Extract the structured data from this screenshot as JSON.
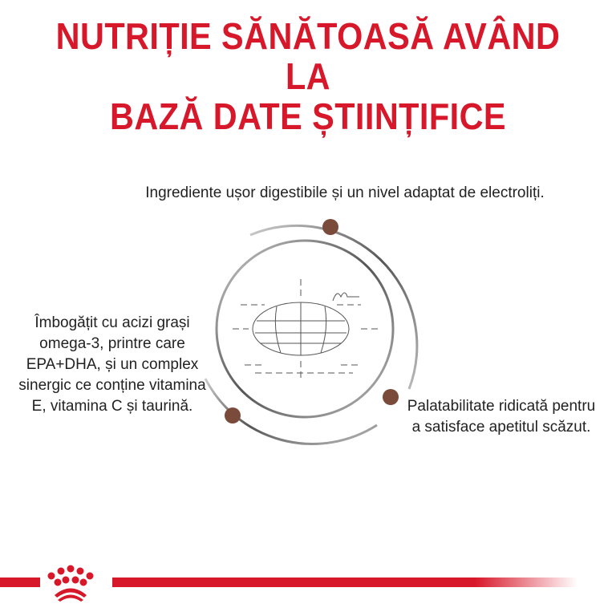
{
  "title": {
    "line1": "NUTRIȚIE SĂNĂTOASĂ AVÂND LA",
    "line2": "BAZĂ DATE ȘTIINȚIFICE"
  },
  "features": [
    {
      "text": "Ingrediente ușor digestibile și un nivel adaptat de electroliți."
    },
    {
      "text": "Îmbogățit cu acizi grași omega-3, printre care EPA+DHA, și un complex sinergic ce conține vitamina E, vitamina C și taurină."
    },
    {
      "text": "Palatabilitate ridicată pentru a satisface apetitul scăzut."
    }
  ],
  "colors": {
    "brand": "#d7182a",
    "dot": "#7a4a3a"
  },
  "logo": {
    "name": "crown-logo",
    "text": "Royal Canin"
  }
}
